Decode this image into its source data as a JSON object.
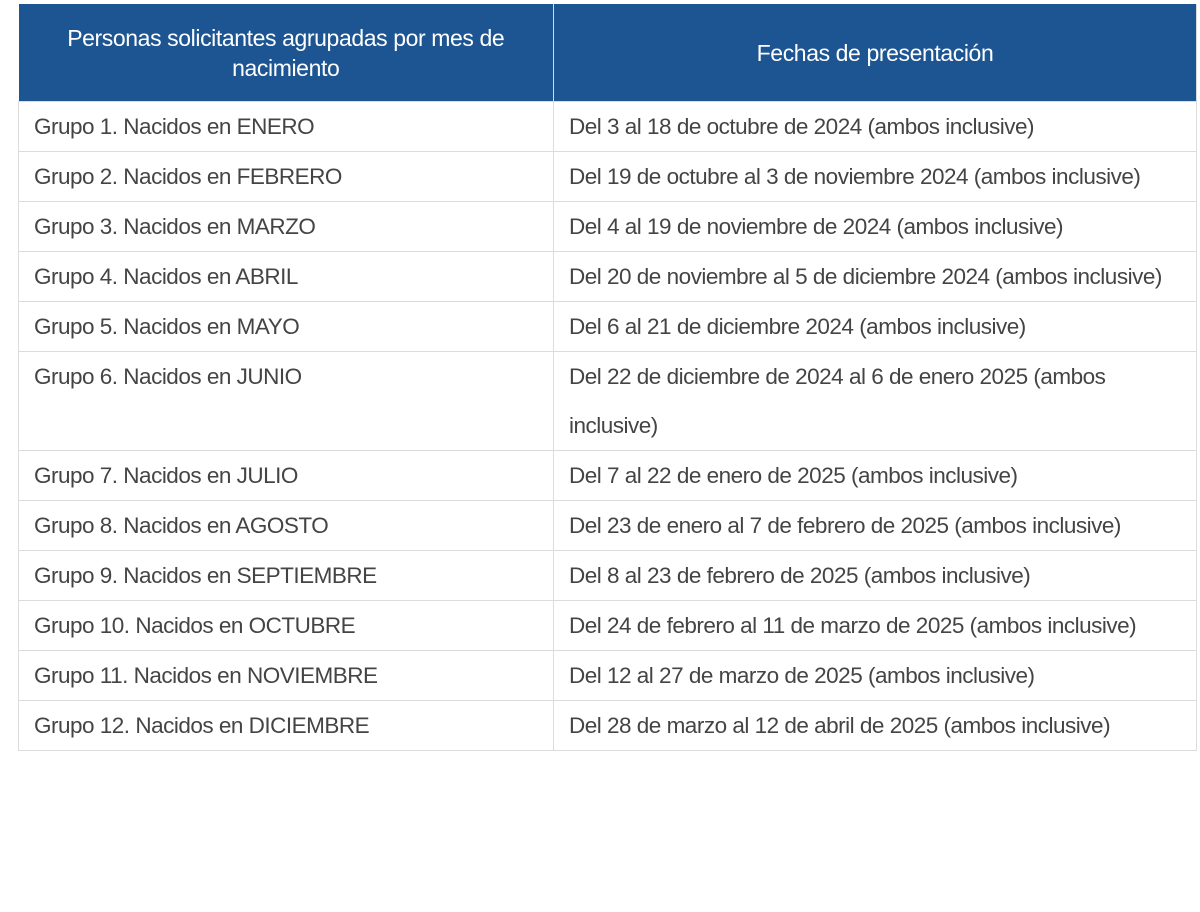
{
  "table": {
    "header": [
      "Personas solicitantes agrupadas por mes de nacimiento",
      "Fechas de presentación"
    ],
    "rows": [
      [
        "Grupo 1. Nacidos en ENERO",
        "Del 3 al 18 de octubre de 2024 (ambos inclusive)"
      ],
      [
        "Grupo 2. Nacidos en FEBRERO",
        "Del 19 de octubre al 3 de noviembre 2024 (ambos inclusive)"
      ],
      [
        "Grupo 3. Nacidos en MARZO",
        "Del 4 al 19 de noviembre de 2024 (ambos inclusive)"
      ],
      [
        "Grupo 4. Nacidos en ABRIL",
        "Del 20 de noviembre al 5 de diciembre 2024 (ambos inclusive)"
      ],
      [
        "Grupo 5. Nacidos en MAYO",
        "Del 6 al 21 de diciembre 2024 (ambos inclusive)"
      ],
      [
        "Grupo 6. Nacidos en JUNIO",
        "Del 22 de diciembre de 2024 al 6 de enero 2025 (ambos inclusive)"
      ],
      [
        "Grupo 7. Nacidos en JULIO",
        "Del 7 al 22 de enero de 2025 (ambos inclusive)"
      ],
      [
        "Grupo 8. Nacidos en AGOSTO",
        "Del 23 de enero al 7 de febrero de 2025 (ambos inclusive)"
      ],
      [
        "Grupo 9. Nacidos en SEPTIEMBRE",
        "Del 8 al 23 de febrero de 2025 (ambos inclusive)"
      ],
      [
        "Grupo 10. Nacidos en OCTUBRE",
        "Del 24 de febrero al 11 de marzo de 2025 (ambos inclusive)"
      ],
      [
        "Grupo 11. Nacidos en NOVIEMBRE",
        "Del 12 al 27 de marzo de 2025 (ambos inclusive)"
      ],
      [
        "Grupo 12. Nacidos en DICIEMBRE",
        "Del 28 de marzo al 12 de abril de 2025 (ambos inclusive)"
      ]
    ]
  }
}
